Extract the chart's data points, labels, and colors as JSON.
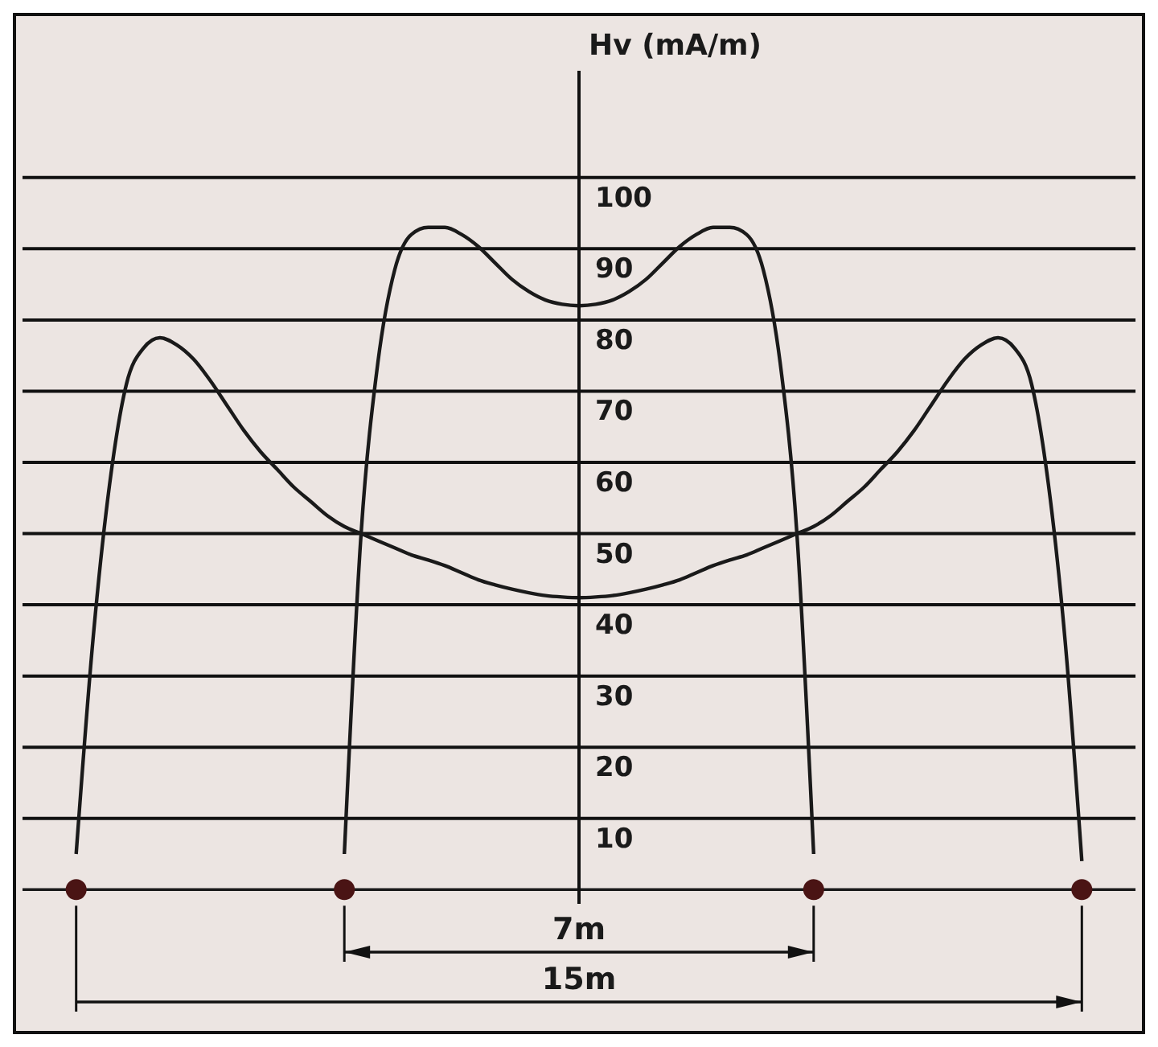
{
  "chart_data": {
    "type": "line",
    "ylabel": "Hv (mA/m)",
    "categories": [
      null,
      null,
      null,
      null,
      null,
      null,
      null,
      null,
      null,
      null,
      null,
      null,
      null,
      null,
      null,
      null,
      null,
      null,
      null,
      null,
      null,
      null,
      null,
      null,
      null,
      null,
      null,
      null,
      null,
      null,
      null,
      null,
      null,
      null,
      null,
      null,
      null,
      null,
      null,
      null,
      null,
      null,
      null,
      null,
      null,
      null,
      null,
      null,
      null,
      null,
      null,
      null,
      null,
      null,
      null,
      null,
      null,
      null,
      null,
      null,
      null
    ],
    "ylim": [
      -2,
      115
    ],
    "yticks": [
      10,
      20,
      30,
      40,
      50,
      60,
      70,
      80,
      90,
      100
    ],
    "grid": "y",
    "legend": false,
    "marker": "none",
    "line_style": "solid",
    "tick_labels": "y",
    "series": [
      {
        "color": "#1a1a1a",
        "values": [
          5,
          35,
          57,
          71,
          76,
          77.5,
          76.5,
          74.5,
          71.5,
          68,
          64.5,
          61.5,
          59,
          56.5,
          54.5,
          52.5,
          51,
          50,
          49,
          48,
          47,
          46.3,
          45.5,
          44.5,
          43.5,
          42.8,
          42.2,
          41.7,
          41.3,
          41.1,
          41,
          41.1,
          41.3,
          41.7,
          42.2,
          42.8,
          43.5,
          44.5,
          45.5,
          46.3,
          47,
          48,
          49,
          50,
          51,
          52.5,
          54.5,
          56.5,
          59,
          61.5,
          64.5,
          68,
          71.5,
          74.5,
          76.5,
          77.5,
          76,
          71,
          57,
          35,
          4
        ]
      },
      {
        "color": "#1a1a1a",
        "values": [
          null,
          null,
          null,
          null,
          null,
          null,
          null,
          null,
          null,
          null,
          null,
          null,
          null,
          null,
          null,
          null,
          5,
          50,
          74,
          87,
          92,
          93,
          93,
          92,
          90.3,
          88,
          85.7,
          84,
          82.8,
          82.2,
          82,
          82.2,
          82.8,
          84,
          85.7,
          88,
          90.3,
          92,
          93,
          93,
          92,
          87,
          74,
          50,
          5,
          null,
          null,
          null,
          null,
          null,
          null,
          null,
          null,
          null,
          null,
          null,
          null,
          null,
          null,
          null,
          null
        ]
      },
      {
        "type": "scatter",
        "marker": "circle",
        "color": "#4a1414",
        "values": [
          0,
          null,
          null,
          null,
          null,
          null,
          null,
          null,
          null,
          null,
          null,
          null,
          null,
          null,
          null,
          null,
          0,
          null,
          null,
          null,
          null,
          null,
          null,
          null,
          null,
          null,
          null,
          null,
          null,
          null,
          null,
          null,
          null,
          null,
          null,
          null,
          null,
          null,
          null,
          null,
          null,
          null,
          null,
          null,
          0,
          null,
          null,
          null,
          null,
          null,
          null,
          null,
          null,
          null,
          null,
          null,
          null,
          null,
          null,
          null,
          0
        ]
      }
    ],
    "ref_lines": [
      {
        "axis": "y",
        "value": 0,
        "color": "#1a1a1a",
        "line_style": "solid"
      }
    ],
    "annotations": [
      "7m",
      "15m"
    ]
  }
}
